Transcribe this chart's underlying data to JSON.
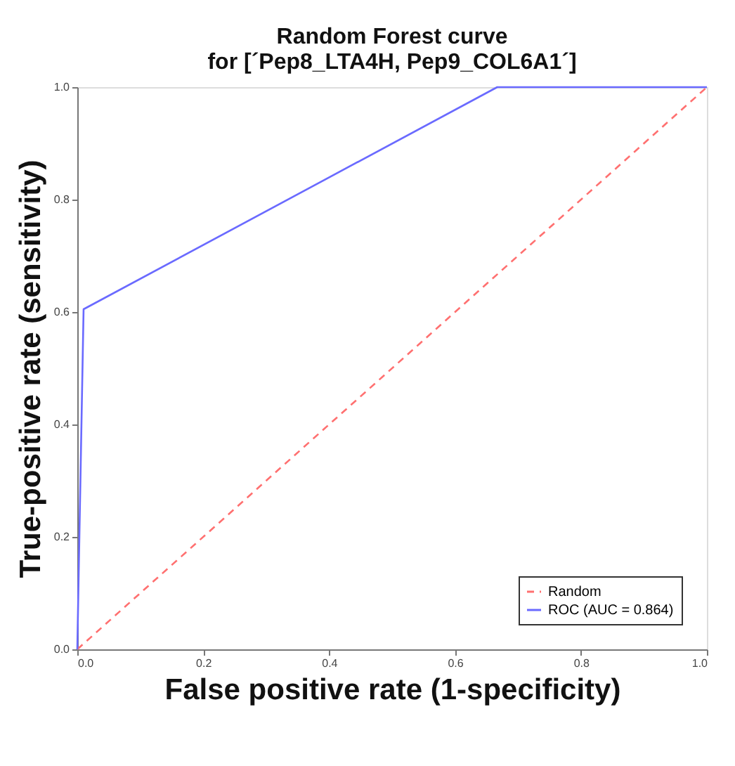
{
  "chart_data": {
    "type": "line",
    "title": [
      "Random Forest curve",
      "for [´Pep8_LTA4H, Pep9_COL6A1´]"
    ],
    "xlabel": "False positive rate (1-specificity)",
    "ylabel": "True-positive rate (sensitivity)",
    "xlim": [
      0,
      1.0
    ],
    "ylim": [
      0,
      1.0
    ],
    "xticks": [
      {
        "value": 0,
        "label": "0.0"
      },
      0.2,
      0.4,
      0.6,
      0.8,
      {
        "value": 1,
        "label": "1.0"
      }
    ],
    "yticks": [
      {
        "value": 0,
        "label": "0.0"
      },
      0.2,
      0.4,
      0.6,
      0.8,
      {
        "value": 1,
        "label": "1.0"
      }
    ],
    "grid": false,
    "legend": "bottom right",
    "marker": "none",
    "series": [
      {
        "name": "Random",
        "color": "#ff7070",
        "line_style": "dashed",
        "x": [
          0,
          1
        ],
        "values": [
          0,
          1
        ]
      },
      {
        "name": "ROC (AUC = 0.864)",
        "color": "#6a6aff",
        "line_style": "solid",
        "x": [
          0,
          0.01,
          0.667,
          1.0
        ],
        "values": [
          0,
          0.605,
          1.0,
          1.0
        ]
      }
    ]
  }
}
